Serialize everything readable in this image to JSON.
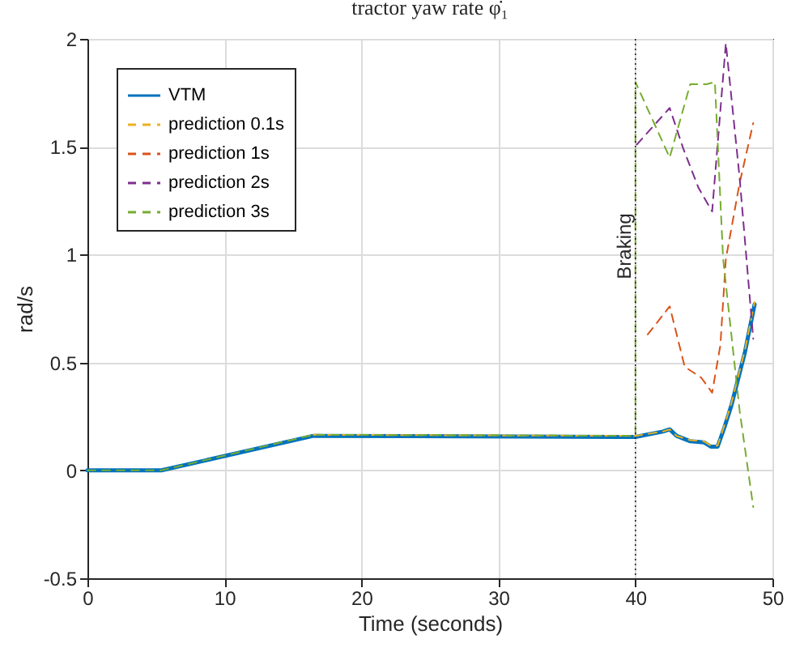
{
  "chart_data": {
    "type": "line",
    "title": "tractor yaw rate φ̇₁",
    "xlabel": "Time (seconds)",
    "ylabel": "rad/s",
    "xlim": [
      0,
      50
    ],
    "xticks": [
      0,
      10,
      20,
      30,
      40,
      50
    ],
    "ylim": [
      -0.5,
      2
    ],
    "yticks": [
      -0.5,
      0,
      0.5,
      1,
      1.5,
      2
    ],
    "grid": true,
    "legend": "top left",
    "series": [
      {
        "name": "VTM",
        "color": "#0072bd",
        "line_style": "solid",
        "x": [
          0,
          5.4,
          16.5,
          40,
          42,
          42.5,
          43,
          44,
          45,
          45.5,
          46,
          46.5,
          47,
          48,
          48.7
        ],
        "values": [
          0,
          0,
          0.16,
          0.155,
          0.18,
          0.19,
          0.16,
          0.135,
          0.13,
          0.11,
          0.11,
          0.2,
          0.3,
          0.55,
          0.77
        ]
      },
      {
        "name": "prediction 0.1s",
        "color": "#edb120",
        "line_style": "dashed",
        "x": [
          16.5,
          40,
          42,
          42.5,
          43,
          44,
          45,
          45.5,
          46,
          46.5,
          47,
          48,
          48.7
        ],
        "values": [
          0.165,
          0.16,
          0.18,
          0.19,
          0.16,
          0.14,
          0.135,
          0.115,
          0.115,
          0.21,
          0.31,
          0.56,
          0.78
        ]
      },
      {
        "name": "prediction 1s",
        "color": "#d95319",
        "line_style": "dashed",
        "x": [
          40.9,
          42.5,
          43.6,
          44.8,
          45.6,
          46.2,
          46.6,
          47.6,
          48.6
        ],
        "values": [
          0.63,
          0.76,
          0.48,
          0.43,
          0.36,
          0.58,
          0.98,
          1.33,
          1.61
        ]
      },
      {
        "name": "prediction 2s",
        "color": "#7e2f8e",
        "line_style": "dashed",
        "x": [
          40.1,
          42.5,
          43.5,
          44.6,
          45.6,
          46.6,
          47.6,
          48.6
        ],
        "values": [
          1.51,
          1.68,
          1.49,
          1.31,
          1.2,
          1.98,
          1.36,
          0.61
        ]
      },
      {
        "name": "prediction 3s",
        "color": "#77ac30",
        "line_style": "dashed",
        "x": [
          0,
          5.4,
          16.5,
          40,
          40,
          42.5,
          44,
          45.2,
          45.8,
          46.4,
          47.6,
          48.6
        ],
        "values": [
          0,
          0,
          0.165,
          0.16,
          1.8,
          1.45,
          1.79,
          1.79,
          1.8,
          0.98,
          0.28,
          -0.17
        ]
      }
    ],
    "ref_lines": [
      {
        "axis": "x",
        "value": 40,
        "label": "Braking",
        "color": "#262626",
        "line_style": "dotted"
      }
    ]
  }
}
